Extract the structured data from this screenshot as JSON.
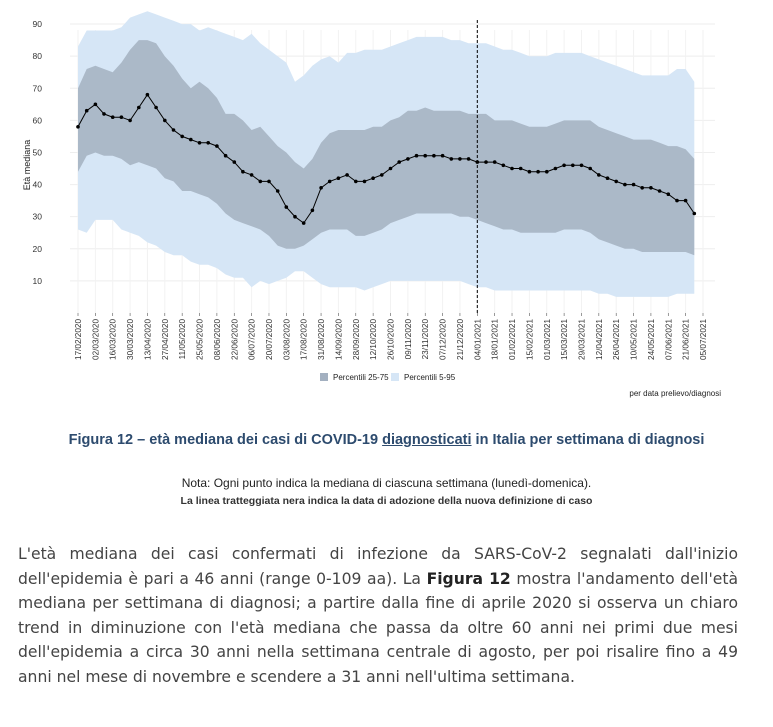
{
  "chart_data": {
    "type": "line",
    "ylabel": "Età mediana",
    "y_ticks": [
      10,
      20,
      30,
      40,
      50,
      60,
      70,
      80,
      90
    ],
    "ylim": [
      0,
      95
    ],
    "x_tick_labels": [
      "17/02/2020",
      "02/03/2020",
      "16/03/2020",
      "30/03/2020",
      "13/04/2020",
      "27/04/2020",
      "11/05/2020",
      "25/05/2020",
      "08/06/2020",
      "22/06/2020",
      "06/07/2020",
      "20/07/2020",
      "03/08/2020",
      "17/08/2020",
      "31/08/2020",
      "14/09/2020",
      "28/09/2020",
      "12/10/2020",
      "26/10/2020",
      "09/11/2020",
      "23/11/2020",
      "07/12/2020",
      "21/12/2020",
      "04/01/2021",
      "18/01/2021",
      "01/02/2021",
      "15/02/2021",
      "01/03/2021",
      "15/03/2021",
      "29/03/2021",
      "12/04/2021",
      "26/04/2021",
      "10/05/2021",
      "24/05/2021",
      "07/06/2021",
      "21/06/2021",
      "05/07/2021"
    ],
    "dashed_line_x": "04/01/2021",
    "median_series": {
      "name": "Età mediana",
      "values": [
        58,
        63,
        65,
        62,
        61,
        61,
        60,
        64,
        68,
        64,
        60,
        57,
        55,
        54,
        53,
        53,
        52,
        49,
        47,
        44,
        43,
        41,
        41,
        38,
        33,
        30,
        28,
        32,
        39,
        41,
        42,
        43,
        41,
        41,
        42,
        43,
        45,
        47,
        48,
        49,
        49,
        49,
        49,
        48,
        48,
        48,
        47,
        47,
        47,
        46,
        45,
        45,
        44,
        44,
        44,
        45,
        46,
        46,
        46,
        45,
        43,
        42,
        41,
        40,
        40,
        39,
        39,
        38,
        37,
        35,
        35,
        31
      ]
    },
    "band_25_75": {
      "name": "Percentili 25-75",
      "upper": [
        70,
        76,
        77,
        76,
        75,
        78,
        82,
        85,
        85,
        84,
        80,
        77,
        73,
        70,
        72,
        70,
        67,
        62,
        62,
        60,
        57,
        58,
        55,
        52,
        50,
        47,
        45,
        48,
        53,
        56,
        57,
        57,
        57,
        57,
        58,
        58,
        60,
        61,
        63,
        63,
        64,
        63,
        63,
        63,
        63,
        62,
        62,
        62,
        60,
        60,
        60,
        59,
        58,
        58,
        58,
        59,
        60,
        60,
        60,
        60,
        58,
        57,
        56,
        55,
        54,
        54,
        54,
        53,
        52,
        52,
        51,
        48
      ],
      "lower": [
        44,
        49,
        50,
        49,
        49,
        48,
        46,
        47,
        46,
        45,
        42,
        41,
        38,
        38,
        37,
        36,
        34,
        31,
        29,
        28,
        27,
        26,
        24,
        21,
        20,
        20,
        21,
        23,
        25,
        26,
        26,
        26,
        24,
        24,
        25,
        26,
        28,
        29,
        30,
        31,
        31,
        31,
        31,
        31,
        30,
        30,
        29,
        28,
        27,
        26,
        26,
        25,
        25,
        25,
        25,
        25,
        26,
        26,
        26,
        25,
        23,
        22,
        21,
        20,
        20,
        19,
        19,
        19,
        19,
        19,
        19,
        18
      ]
    },
    "band_5_95": {
      "name": "Percentili 5-95",
      "upper": [
        83,
        88,
        88,
        88,
        88,
        89,
        92,
        93,
        94,
        93,
        92,
        91,
        90,
        90,
        88,
        89,
        88,
        87,
        86,
        85,
        87,
        84,
        82,
        80,
        78,
        72,
        74,
        77,
        79,
        80,
        78,
        81,
        81,
        82,
        82,
        82,
        83,
        84,
        85,
        86,
        86,
        86,
        86,
        85,
        85,
        84,
        84,
        84,
        83,
        82,
        82,
        81,
        80,
        80,
        80,
        81,
        81,
        81,
        81,
        80,
        79,
        78,
        77,
        76,
        75,
        74,
        74,
        74,
        74,
        76,
        76,
        72
      ],
      "lower": [
        26,
        25,
        29,
        29,
        29,
        26,
        25,
        24,
        22,
        21,
        19,
        18,
        18,
        16,
        15,
        15,
        14,
        12,
        11,
        11,
        8,
        10,
        9,
        10,
        11,
        13,
        13,
        11,
        9,
        8,
        8,
        8,
        8,
        7,
        8,
        9,
        10,
        10,
        10,
        10,
        10,
        10,
        10,
        10,
        10,
        9,
        8,
        8,
        7,
        7,
        7,
        7,
        7,
        7,
        7,
        7,
        7,
        7,
        7,
        7,
        6,
        6,
        5,
        5,
        5,
        5,
        5,
        5,
        5,
        6,
        6,
        6
      ]
    },
    "legend": [
      "Percentili 25-75",
      "Percentili 5-95"
    ],
    "legend_position": "bottom",
    "note": "per data prelievo/diagnosi",
    "colors": {
      "band_25_75": "#a3b0c0",
      "band_5_95": "#d6e6f6",
      "median": "#000000"
    }
  },
  "figure": {
    "title_part1": "Figura 12 – età mediana dei casi di COVID-19 ",
    "title_underlined": "diagnosticati",
    "title_part2": " in Italia per settimana di diagnosi",
    "note": "Nota: Ogni punto indica la mediana di ciascuna settimana (lunedì-domenica).",
    "note2": "La linea tratteggiata nera indica la data di adozione della nuova definizione di caso"
  },
  "body": {
    "t1": "L'età mediana dei casi confermati di infezione da SARS-CoV-2 segnalati dall'inizio dell'epidemia è pari a 46 anni (range 0-109 aa). La ",
    "bold": "Figura 12",
    "t2": " mostra l'andamento dell'età mediana per settimana di diagnosi; a partire dalla fine di aprile 2020 si osserva un chiaro trend in diminuzione con l'età mediana che passa da oltre 60 anni nei primi due mesi dell'epidemia a circa 30 anni nella settimana centrale di agosto, per poi risalire fino a 49 anni nel mese di novembre e scendere a 31 anni nell'ultima settimana."
  }
}
